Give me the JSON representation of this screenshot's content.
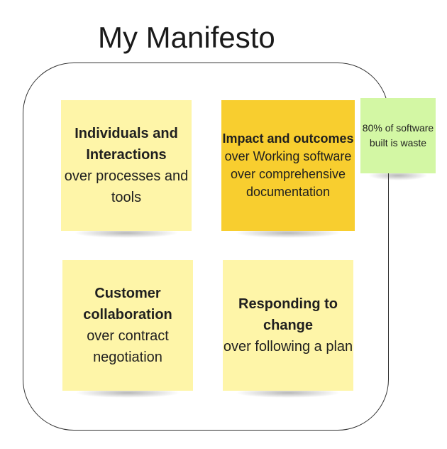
{
  "title": "My Manifesto",
  "notes": {
    "individuals": {
      "bold": "Individuals and Interactions",
      "rest": "over processes and tools"
    },
    "impact": {
      "bold": "Impact and outcomes",
      "rest": " over Working software over comprehensive documentation"
    },
    "customer": {
      "bold": "Customer collaboration",
      "rest": "over contract negotiation"
    },
    "responding": {
      "bold": "Responding to change",
      "rest": "over following a plan"
    },
    "waste": {
      "text": "80% of software built is waste"
    }
  },
  "colors": {
    "yellow": "#fef5a8",
    "orange": "#f8ce2f",
    "green": "#d3f7a4"
  }
}
